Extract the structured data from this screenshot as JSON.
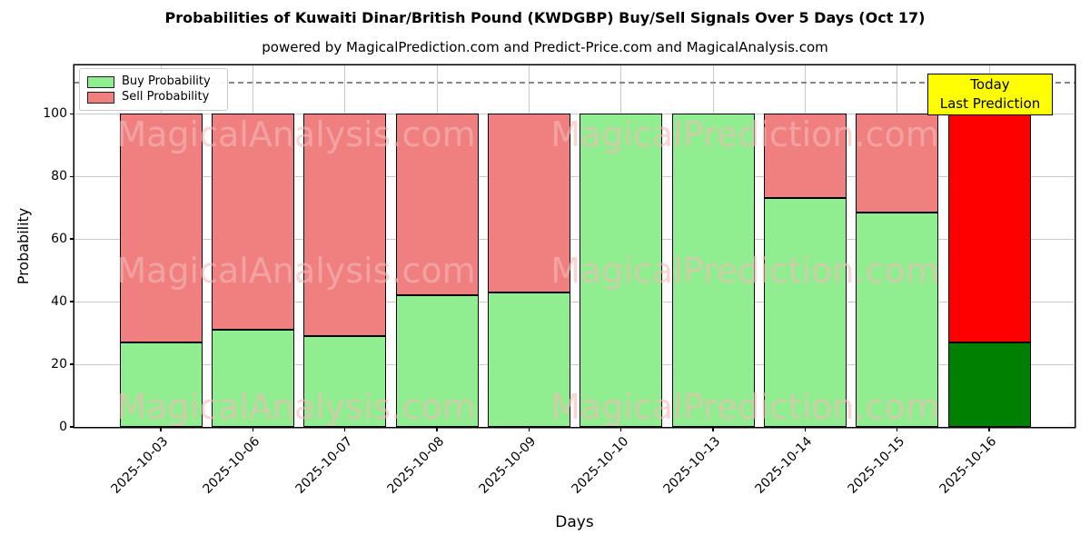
{
  "header": {
    "title": "Probabilities of Kuwaiti Dinar/British Pound (KWDGBP) Buy/Sell Signals Over 5 Days (Oct 17)",
    "subtitle": "powered by MagicalPrediction.com and Predict-Price.com and MagicalAnalysis.com"
  },
  "chart_data": {
    "type": "bar",
    "stacked": true,
    "categories": [
      "2025-10-03",
      "2025-10-06",
      "2025-10-07",
      "2025-10-08",
      "2025-10-09",
      "2025-10-10",
      "2025-10-13",
      "2025-10-14",
      "2025-10-15",
      "2025-10-16"
    ],
    "series": [
      {
        "name": "Buy Probability",
        "color": "#90EE90",
        "final_bar_color": "#008000",
        "values": [
          27,
          31,
          29,
          42,
          43,
          100,
          100,
          73,
          68.5,
          27
        ]
      },
      {
        "name": "Sell Probability",
        "color": "#F08080",
        "final_bar_color": "#FF0000",
        "values": [
          73,
          69,
          71,
          58,
          57,
          0,
          0,
          27,
          31.5,
          73
        ]
      }
    ],
    "xlabel": "Days",
    "ylabel": "Probability",
    "yticks": [
      0,
      20,
      40,
      60,
      80,
      100
    ],
    "ylim": [
      0,
      115.5
    ],
    "threshold_line": {
      "y": 110,
      "style": "dashed",
      "color": "#888888"
    },
    "grid": true,
    "bar_edge_color": "#000000",
    "legend_position": "upper left"
  },
  "legend": {
    "entries": [
      {
        "label": "Buy Probability",
        "swatch_color": "#90EE90"
      },
      {
        "label": "Sell Probability",
        "swatch_color": "#F08080"
      }
    ]
  },
  "annotation_box": {
    "line1": "Today",
    "line2": "Last Prediction",
    "bg_color": "#ffff00"
  },
  "watermarks": {
    "left_text": "MagicalAnalysis.com",
    "right_text": "MagicalPrediction.com"
  }
}
